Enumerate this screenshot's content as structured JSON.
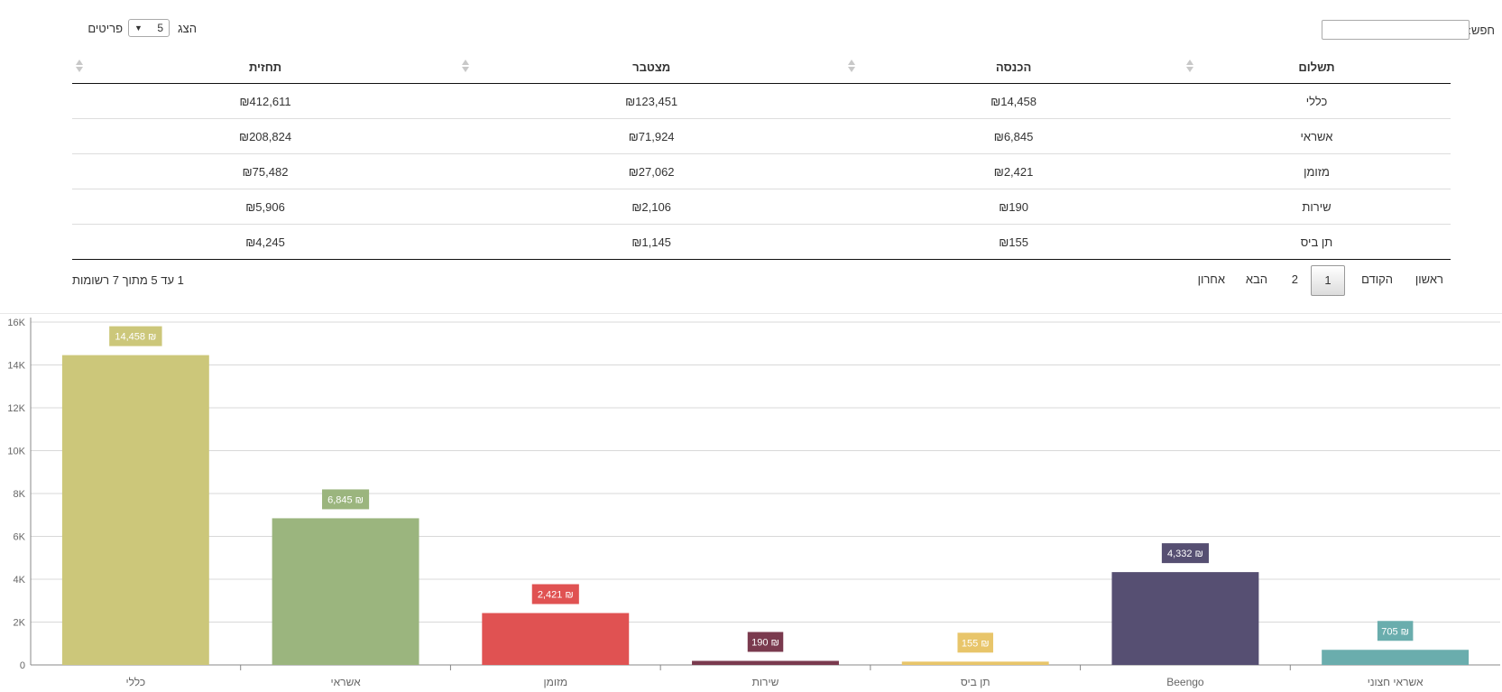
{
  "search": {
    "label": "חפש:",
    "value": "",
    "placeholder": ""
  },
  "length_menu": {
    "word_before": "הצג",
    "selected": "5",
    "word_after": "פריטים"
  },
  "table": {
    "columns": [
      {
        "label": "תשלום"
      },
      {
        "label": "הכנסה"
      },
      {
        "label": "מצטבר"
      },
      {
        "label": "תחזית"
      }
    ],
    "rows": [
      [
        "כללי",
        "₪14,458",
        "₪123,451",
        "₪412,611"
      ],
      [
        "אשראי",
        "₪6,845",
        "₪71,924",
        "₪208,824"
      ],
      [
        "מזומן",
        "₪2,421",
        "₪27,062",
        "₪75,482"
      ],
      [
        "שירות",
        "₪190",
        "₪2,106",
        "₪5,906"
      ],
      [
        "תן ביס",
        "₪155",
        "₪1,145",
        "₪4,245"
      ]
    ]
  },
  "info": "1 עד 5 מתוך 7 רשומות",
  "pagination": {
    "first": "ראשון",
    "previous": "הקודם",
    "pages": [
      "1",
      "2"
    ],
    "current": "1",
    "next": "הבא",
    "last": "אחרון"
  },
  "chart_data": {
    "type": "bar",
    "categories": [
      "כללי",
      "אשראי",
      "מזומן",
      "שירות",
      "תן ביס",
      "Beengo",
      "אשראי חצוני"
    ],
    "values": [
      14458,
      6845,
      2421,
      190,
      155,
      4332,
      705
    ],
    "value_labels": [
      "14,458 ₪",
      "6,845 ₪",
      "2,421 ₪",
      "190 ₪",
      "155 ₪",
      "4,332 ₪",
      "705 ₪"
    ],
    "colors": [
      "#ccc77a",
      "#9bb57e",
      "#e05252",
      "#7a3a4e",
      "#e8c56a",
      "#564f72",
      "#6aadad"
    ],
    "y_ticks": [
      0,
      2000,
      4000,
      6000,
      8000,
      10000,
      12000,
      14000,
      16000
    ],
    "y_tick_labels": [
      "0",
      "2K",
      "4K",
      "6K",
      "8K",
      "10K",
      "12K",
      "14K",
      "16K"
    ],
    "ylim": [
      0,
      16000
    ],
    "grid": true,
    "title": "",
    "xlabel": "",
    "ylabel": ""
  }
}
